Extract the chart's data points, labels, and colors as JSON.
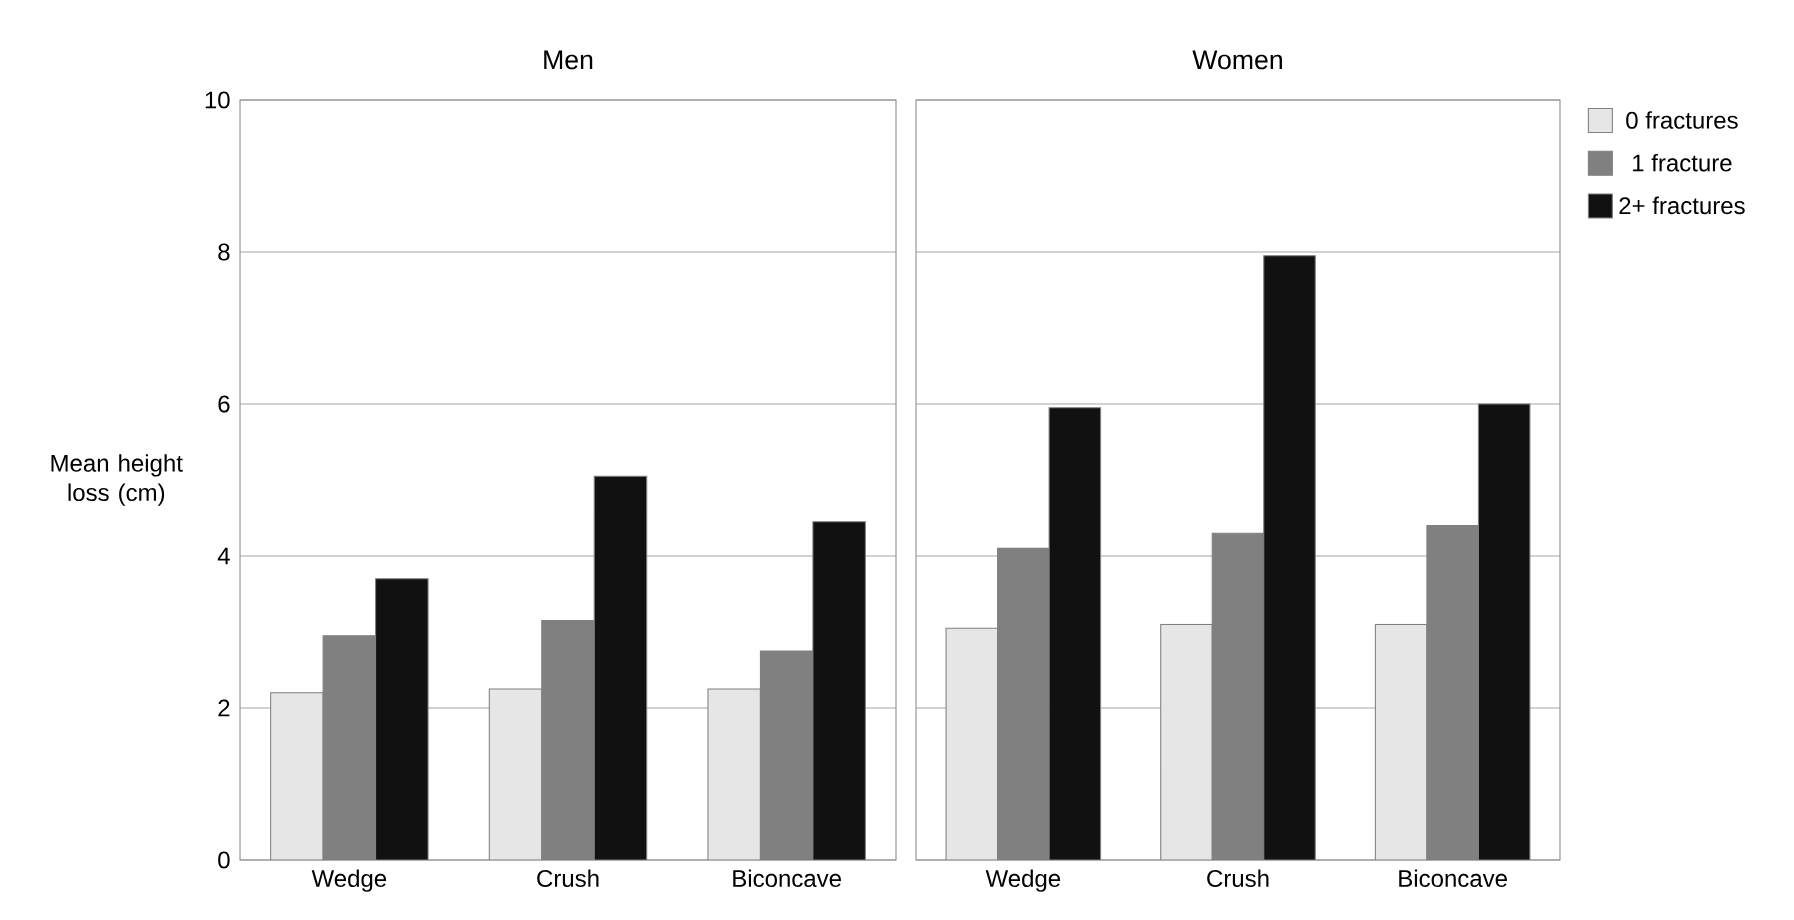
{
  "chart_data": [
    {
      "type": "bar",
      "title": "Men",
      "ylabel": "Mean height loss (cm)",
      "categories": [
        "Wedge",
        "Crush",
        "Biconcave"
      ],
      "series": [
        {
          "color": "#e6e6e6",
          "values": [
            2.2,
            2.25,
            2.25
          ]
        },
        {
          "color": "#808080",
          "values": [
            2.95,
            3.15,
            2.75
          ]
        },
        {
          "color": "#111111",
          "values": [
            3.7,
            5.05,
            4.45
          ]
        }
      ],
      "ylim": [
        0,
        10
      ],
      "yticks": [
        0,
        2,
        4,
        6,
        8,
        10
      ],
      "grid": "y"
    },
    {
      "type": "bar",
      "title": "Women",
      "categories": [
        "Wedge",
        "Crush",
        "Biconcave"
      ],
      "series": [
        {
          "name": "0 fractures",
          "color": "#e6e6e6",
          "values": [
            3.05,
            3.1,
            3.1
          ]
        },
        {
          "name": "1 fracture",
          "color": "#808080",
          "values": [
            4.1,
            4.3,
            4.4
          ]
        },
        {
          "name": "2+ fractures",
          "color": "#111111",
          "values": [
            5.95,
            7.95,
            6.0
          ]
        }
      ],
      "ylim": [
        0,
        10
      ],
      "yticks": [
        0,
        2,
        4,
        6,
        8,
        10
      ],
      "grid": "y",
      "tick_labels": "x",
      "legend": "right"
    }
  ]
}
